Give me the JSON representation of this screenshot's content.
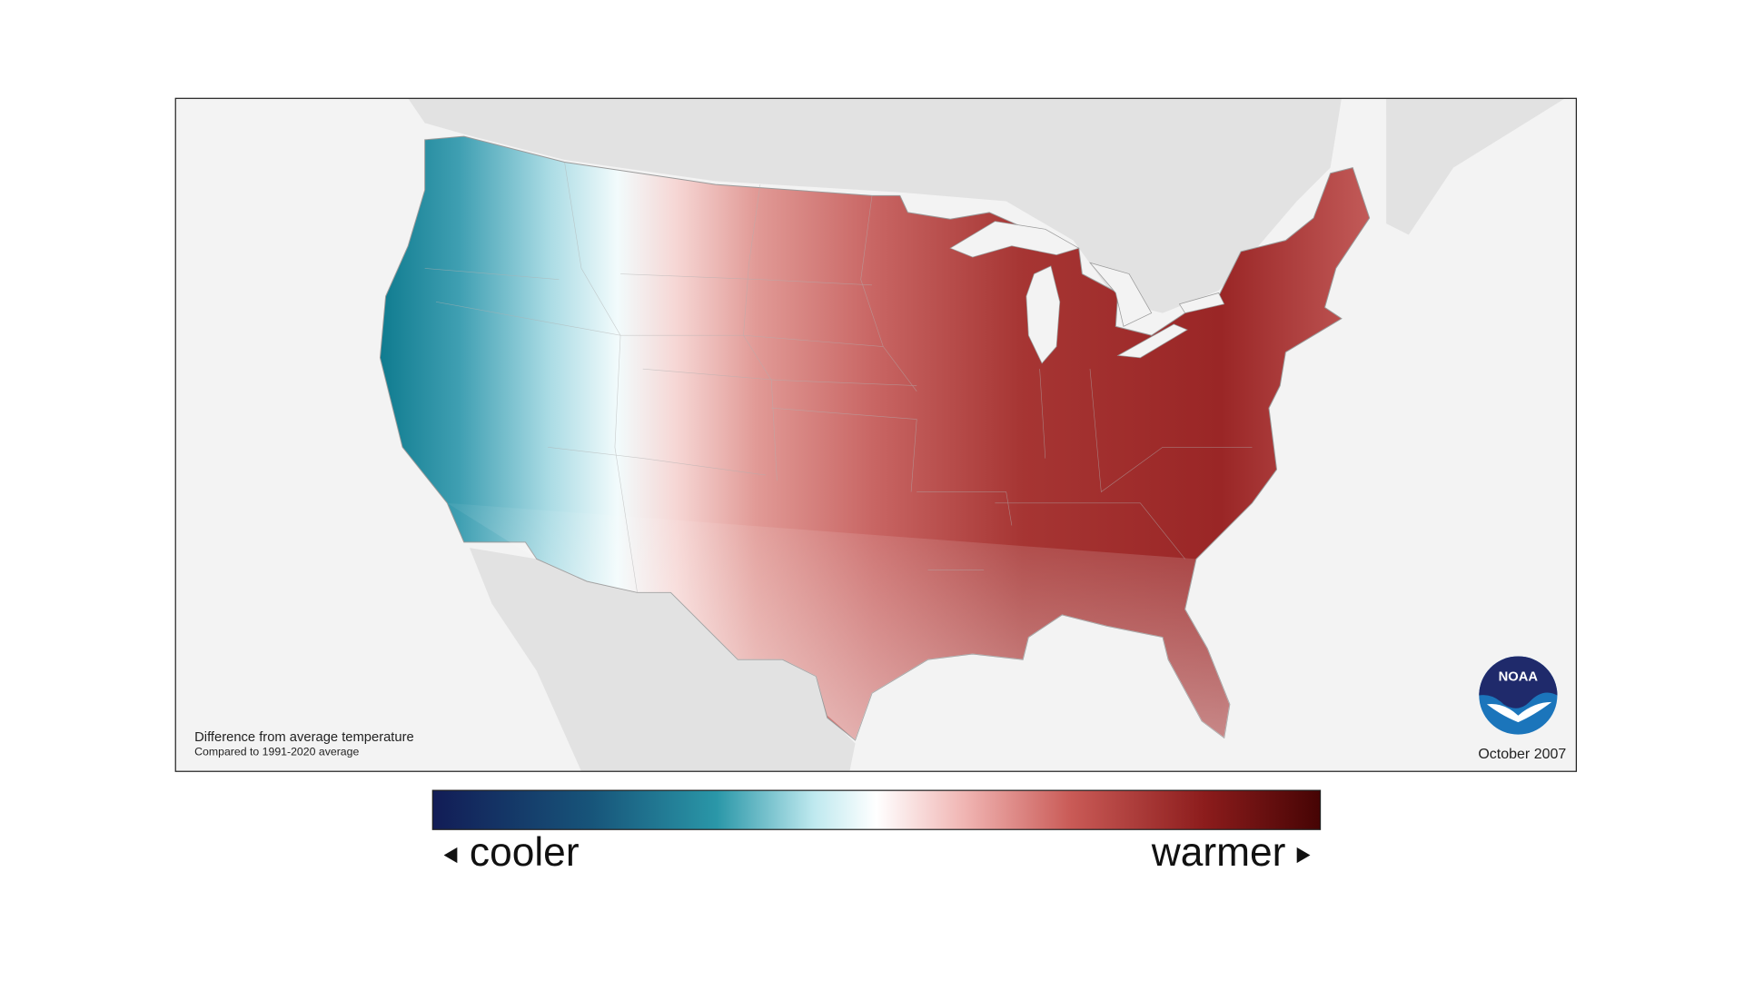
{
  "map": {
    "note": "Difference from average temperature",
    "subnote": "Compared to 1991-2020 average",
    "date": "October 2007",
    "logo": "NOAA"
  },
  "legend": {
    "low": "cooler",
    "high": "warmer"
  }
}
